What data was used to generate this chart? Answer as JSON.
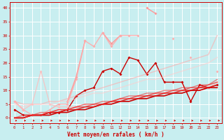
{
  "title": "",
  "xlabel": "Vent moyen/en rafales ( km/h )",
  "background_color": "#c8eef0",
  "grid_color": "#aadddd",
  "x_range": [
    -0.5,
    23.5
  ],
  "y_range": [
    -2,
    42
  ],
  "lines": [
    {
      "x": [
        0,
        1,
        2,
        3,
        4,
        5,
        6,
        7,
        8,
        9,
        10,
        11,
        12,
        13,
        14,
        15,
        16,
        17,
        18,
        19,
        20,
        21,
        22,
        23
      ],
      "y": [
        3,
        1,
        1,
        1,
        2,
        2,
        3,
        8,
        10,
        11,
        17,
        18,
        16,
        22,
        21,
        16,
        20,
        13,
        13,
        13,
        6,
        12,
        11,
        12
      ],
      "color": "#cc0000",
      "alpha": 1.0,
      "lw": 1.0,
      "marker": "D",
      "ms": 2.0
    },
    {
      "x": [
        0,
        1,
        2,
        3,
        4,
        5,
        6,
        7,
        8,
        9,
        10,
        11,
        12,
        13,
        14,
        15,
        16,
        17,
        18,
        19,
        20,
        21,
        22,
        23
      ],
      "y": [
        6,
        3,
        null,
        null,
        null,
        null,
        6,
        15,
        28,
        null,
        31,
        27,
        30,
        null,
        null,
        40,
        38,
        null,
        null,
        null,
        null,
        null,
        null,
        null
      ],
      "color": "#ff9999",
      "alpha": 1.0,
      "lw": 1.0,
      "marker": "D",
      "ms": 2.0
    },
    {
      "x": [
        0,
        1,
        2,
        3,
        4,
        5,
        6,
        7,
        8,
        9,
        10,
        11,
        12,
        13,
        14,
        15,
        16,
        17,
        18,
        19,
        20,
        21,
        22,
        23
      ],
      "y": [
        6,
        3,
        1,
        1,
        3,
        5,
        5,
        14,
        28,
        26,
        31,
        26,
        30,
        30,
        30,
        null,
        null,
        null,
        29,
        null,
        22,
        null,
        null,
        17
      ],
      "color": "#ffaaaa",
      "alpha": 0.9,
      "lw": 1.0,
      "marker": "D",
      "ms": 2.0
    },
    {
      "x": [
        0,
        1,
        2,
        3,
        4,
        5,
        6,
        7,
        8,
        9,
        10,
        11,
        12,
        13,
        14,
        15,
        16,
        17,
        18,
        19,
        20,
        21,
        22,
        23
      ],
      "y": [
        6,
        3,
        5,
        17,
        5,
        4,
        4,
        4,
        5,
        5,
        5,
        6,
        7,
        7,
        8,
        8,
        9,
        9,
        10,
        10,
        10,
        11,
        11,
        13
      ],
      "color": "#ffbbbb",
      "alpha": 0.75,
      "lw": 1.0,
      "marker": "D",
      "ms": 2.0
    },
    {
      "x": [
        0,
        1,
        2,
        3,
        4,
        5,
        6,
        7,
        8,
        9,
        10,
        11,
        12,
        13,
        14,
        15,
        16,
        17,
        18,
        19,
        20,
        21,
        22,
        23
      ],
      "y": [
        6,
        5,
        5,
        5,
        6,
        6,
        7,
        8,
        9,
        10,
        11,
        12,
        13,
        14,
        15,
        16,
        17,
        18,
        19,
        20,
        21,
        22,
        23,
        30
      ],
      "color": "#ffaaaa",
      "alpha": 0.6,
      "lw": 1.0,
      "marker": null,
      "ms": 0
    },
    {
      "x": [
        0,
        1,
        2,
        3,
        4,
        5,
        6,
        7,
        8,
        9,
        10,
        11,
        12,
        13,
        14,
        15,
        16,
        17,
        18,
        19,
        20,
        21,
        22,
        23
      ],
      "y": [
        5,
        4,
        5,
        5,
        5,
        6,
        6,
        7,
        8,
        9,
        9,
        10,
        11,
        12,
        13,
        14,
        14,
        15,
        16,
        17,
        18,
        19,
        20,
        22
      ],
      "color": "#ffcccc",
      "alpha": 0.6,
      "lw": 1.0,
      "marker": null,
      "ms": 0
    },
    {
      "x": [
        0,
        1,
        2,
        3,
        4,
        5,
        6,
        7,
        8,
        9,
        10,
        11,
        12,
        13,
        14,
        15,
        16,
        17,
        18,
        19,
        20,
        21,
        22,
        23
      ],
      "y": [
        0,
        0,
        1,
        1,
        1,
        2,
        2,
        3,
        3,
        4,
        5,
        5,
        6,
        6,
        7,
        7,
        8,
        8,
        9,
        9,
        10,
        10,
        11,
        11
      ],
      "color": "#cc0000",
      "alpha": 1.0,
      "lw": 1.2,
      "marker": null,
      "ms": 0
    },
    {
      "x": [
        0,
        1,
        2,
        3,
        4,
        5,
        6,
        7,
        8,
        9,
        10,
        11,
        12,
        13,
        14,
        15,
        16,
        17,
        18,
        19,
        20,
        21,
        22,
        23
      ],
      "y": [
        0,
        0,
        1,
        1,
        2,
        2,
        3,
        3,
        4,
        4,
        5,
        6,
        6,
        7,
        7,
        8,
        8,
        9,
        9,
        10,
        10,
        11,
        11,
        12
      ],
      "color": "#dd1111",
      "alpha": 0.85,
      "lw": 1.1,
      "marker": null,
      "ms": 0
    },
    {
      "x": [
        0,
        1,
        2,
        3,
        4,
        5,
        6,
        7,
        8,
        9,
        10,
        11,
        12,
        13,
        14,
        15,
        16,
        17,
        18,
        19,
        20,
        21,
        22,
        23
      ],
      "y": [
        0,
        0,
        1,
        1,
        2,
        3,
        3,
        4,
        4,
        5,
        5,
        6,
        7,
        7,
        8,
        8,
        9,
        9,
        10,
        10,
        11,
        11,
        12,
        13
      ],
      "color": "#ee2222",
      "alpha": 0.7,
      "lw": 1.0,
      "marker": null,
      "ms": 0
    },
    {
      "x": [
        0,
        1,
        2,
        3,
        4,
        5,
        6,
        7,
        8,
        9,
        10,
        11,
        12,
        13,
        14,
        15,
        16,
        17,
        18,
        19,
        20,
        21,
        22,
        23
      ],
      "y": [
        0,
        1,
        1,
        2,
        2,
        3,
        3,
        4,
        5,
        5,
        6,
        6,
        7,
        8,
        8,
        9,
        9,
        10,
        10,
        11,
        11,
        12,
        12,
        14
      ],
      "color": "#ee3333",
      "alpha": 0.6,
      "lw": 1.0,
      "marker": null,
      "ms": 0
    }
  ],
  "yticks": [
    0,
    5,
    10,
    15,
    20,
    25,
    30,
    35,
    40
  ],
  "xticks": [
    0,
    1,
    2,
    3,
    4,
    5,
    6,
    7,
    8,
    9,
    10,
    11,
    12,
    13,
    14,
    15,
    16,
    17,
    18,
    19,
    20,
    21,
    22,
    23
  ],
  "tick_color": "#cc0000",
  "spine_color": "#cc0000"
}
